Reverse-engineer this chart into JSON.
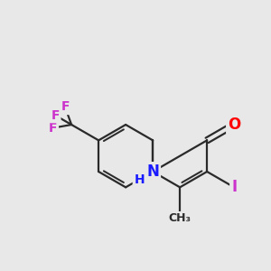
{
  "background_color": "#e8e8e8",
  "bond_color": "#2a2a2a",
  "bond_width": 1.6,
  "atom_colors": {
    "O": "#ff0000",
    "N": "#1a1aff",
    "I": "#cc33cc",
    "F": "#cc33cc",
    "C": "#2a2a2a",
    "H": "#1a1aff"
  },
  "font_size_large": 12,
  "font_size_med": 10,
  "font_size_small": 9
}
